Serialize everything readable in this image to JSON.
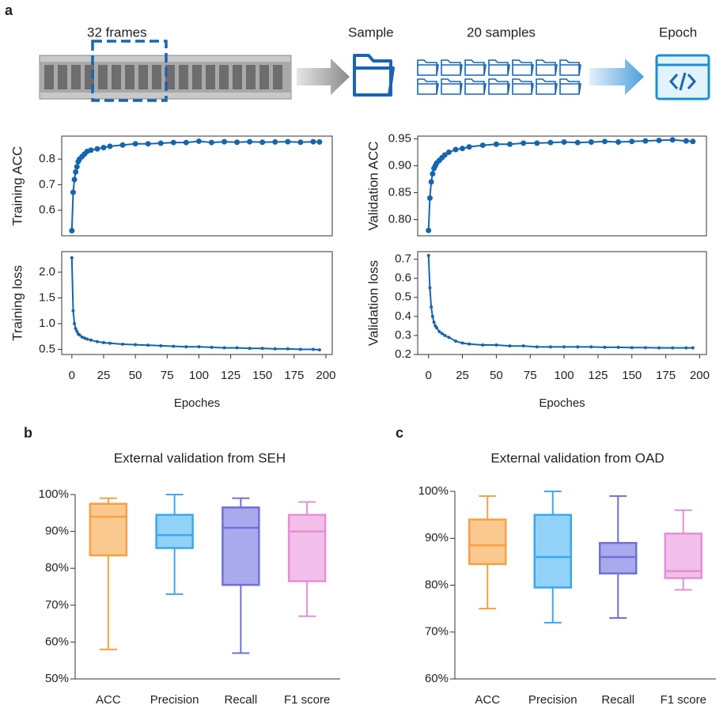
{
  "panel_labels": [
    "a",
    "b",
    "c"
  ],
  "diagram": {
    "frames": "32 frames",
    "sample": "Sample",
    "samples": "20 samples",
    "epoch": "Epoch"
  },
  "chart_data": [
    {
      "type": "line",
      "ylabel": "Training ACC",
      "color": "#1565b0",
      "x": [
        0,
        1,
        2,
        3,
        4,
        5,
        6,
        8,
        10,
        12,
        15,
        20,
        25,
        30,
        40,
        50,
        60,
        70,
        80,
        90,
        100,
        110,
        120,
        130,
        140,
        150,
        160,
        170,
        180,
        190,
        195
      ],
      "values": [
        0.52,
        0.67,
        0.72,
        0.75,
        0.77,
        0.79,
        0.8,
        0.81,
        0.82,
        0.83,
        0.835,
        0.84,
        0.845,
        0.85,
        0.855,
        0.86,
        0.86,
        0.862,
        0.865,
        0.865,
        0.87,
        0.865,
        0.868,
        0.866,
        0.868,
        0.866,
        0.867,
        0.868,
        0.866,
        0.868,
        0.867
      ],
      "xlim": [
        -8,
        205
      ],
      "ylim": [
        0.5,
        0.89
      ],
      "yticks": [
        0.6,
        0.7,
        0.8
      ]
    },
    {
      "type": "line",
      "ylabel": "Validation ACC",
      "color": "#1565b0",
      "x": [
        0,
        1,
        2,
        3,
        4,
        5,
        6,
        8,
        10,
        12,
        15,
        20,
        25,
        30,
        40,
        50,
        60,
        70,
        80,
        90,
        100,
        110,
        120,
        130,
        140,
        150,
        160,
        170,
        180,
        190,
        195
      ],
      "values": [
        0.78,
        0.84,
        0.87,
        0.885,
        0.895,
        0.9,
        0.905,
        0.91,
        0.915,
        0.92,
        0.925,
        0.93,
        0.932,
        0.935,
        0.938,
        0.94,
        0.94,
        0.942,
        0.942,
        0.943,
        0.944,
        0.943,
        0.944,
        0.945,
        0.944,
        0.945,
        0.946,
        0.947,
        0.948,
        0.946,
        0.945
      ],
      "xlim": [
        -8,
        205
      ],
      "ylim": [
        0.77,
        0.955
      ],
      "yticks": [
        {
          "value": 0.8,
          "label": "0.80"
        },
        {
          "value": 0.85,
          "label": "0.85"
        },
        {
          "value": 0.9,
          "label": "0.90"
        },
        {
          "value": 0.95,
          "label": "0.95"
        }
      ]
    },
    {
      "type": "line",
      "ylabel": "Training loss",
      "xlabel": "Epoches",
      "color": "#1565b0",
      "x": [
        0,
        1,
        2,
        3,
        4,
        5,
        6,
        8,
        10,
        12,
        15,
        20,
        25,
        30,
        40,
        50,
        60,
        70,
        80,
        90,
        100,
        110,
        120,
        130,
        140,
        150,
        160,
        170,
        180,
        190,
        195
      ],
      "values": [
        2.28,
        1.25,
        1.0,
        0.9,
        0.85,
        0.8,
        0.78,
        0.74,
        0.72,
        0.7,
        0.68,
        0.65,
        0.63,
        0.62,
        0.6,
        0.59,
        0.58,
        0.57,
        0.56,
        0.55,
        0.55,
        0.54,
        0.53,
        0.53,
        0.52,
        0.52,
        0.51,
        0.51,
        0.5,
        0.5,
        0.49
      ],
      "xlim": [
        -8,
        205
      ],
      "xticks": [
        0,
        25,
        50,
        75,
        100,
        125,
        150,
        175,
        200
      ],
      "ylim": [
        0.4,
        2.4
      ],
      "yticks": [
        0.5,
        {
          "value": 1,
          "label": "1.0"
        },
        1.5,
        {
          "value": 2,
          "label": "2.0"
        }
      ]
    },
    {
      "type": "line",
      "ylabel": "Validation loss",
      "xlabel": "Epoches",
      "color": "#1565b0",
      "x": [
        0,
        1,
        2,
        3,
        4,
        5,
        6,
        8,
        10,
        12,
        15,
        20,
        25,
        30,
        40,
        50,
        60,
        70,
        80,
        90,
        100,
        110,
        120,
        130,
        140,
        150,
        160,
        170,
        180,
        190,
        195
      ],
      "values": [
        0.72,
        0.55,
        0.45,
        0.4,
        0.37,
        0.35,
        0.34,
        0.32,
        0.31,
        0.3,
        0.29,
        0.27,
        0.26,
        0.255,
        0.25,
        0.25,
        0.245,
        0.245,
        0.24,
        0.24,
        0.24,
        0.24,
        0.24,
        0.238,
        0.238,
        0.236,
        0.236,
        0.235,
        0.235,
        0.235,
        0.235
      ],
      "xlim": [
        -8,
        205
      ],
      "xticks": [
        0,
        25,
        50,
        75,
        100,
        125,
        150,
        175,
        200
      ],
      "ylim": [
        0.2,
        0.74
      ],
      "yticks": [
        0.2,
        0.3,
        0.4,
        0.5,
        0.6,
        0.7
      ]
    },
    {
      "type": "box",
      "title": "External validation from SEH",
      "categories": [
        "ACC",
        "Precision",
        "Recall",
        "F1 score"
      ],
      "colors": [
        "#f5a142",
        "#3aa7f0",
        "#6f70d6",
        "#e58fd8"
      ],
      "fills": [
        "#f9c990",
        "#92d2f9",
        "#a9aaee",
        "#f1bfe9"
      ],
      "boxes": [
        {
          "min": 58,
          "q1": 83.5,
          "median": 94,
          "q3": 97.5,
          "max": 99
        },
        {
          "min": 73,
          "q1": 85.5,
          "median": 89,
          "q3": 94.5,
          "max": 100
        },
        {
          "min": 57,
          "q1": 75.5,
          "median": 91,
          "q3": 96.5,
          "max": 99
        },
        {
          "min": 67,
          "q1": 76.5,
          "median": 90,
          "q3": 94.5,
          "max": 98
        }
      ],
      "ylim": [
        50,
        100
      ],
      "yticks": [
        {
          "value": 50,
          "label": "50%"
        },
        {
          "value": 60,
          "label": "60%"
        },
        {
          "value": 70,
          "label": "70%"
        },
        {
          "value": 80,
          "label": "80%"
        },
        {
          "value": 90,
          "label": "90%"
        },
        {
          "value": 100,
          "label": "100%"
        }
      ]
    },
    {
      "type": "box",
      "title": "External validation from OAD",
      "categories": [
        "ACC",
        "Precision",
        "Recall",
        "F1 score"
      ],
      "colors": [
        "#f5a142",
        "#3aa7f0",
        "#6f70d6",
        "#e58fd8"
      ],
      "fills": [
        "#f9c990",
        "#92d2f9",
        "#a9aaee",
        "#f1bfe9"
      ],
      "boxes": [
        {
          "min": 75,
          "q1": 84.5,
          "median": 88.5,
          "q3": 94,
          "max": 99
        },
        {
          "min": 72,
          "q1": 79.5,
          "median": 86,
          "q3": 95,
          "max": 100
        },
        {
          "min": 73,
          "q1": 82.5,
          "median": 86,
          "q3": 89,
          "max": 99
        },
        {
          "min": 79,
          "q1": 81.5,
          "median": 83,
          "q3": 91,
          "max": 96
        }
      ],
      "ylim": [
        60,
        100
      ],
      "yticks": [
        {
          "value": 60,
          "label": "60%"
        },
        {
          "value": 70,
          "label": "70%"
        },
        {
          "value": 80,
          "label": "80%"
        },
        {
          "value": 90,
          "label": "90%"
        },
        {
          "value": 100,
          "label": "100%"
        }
      ]
    }
  ]
}
